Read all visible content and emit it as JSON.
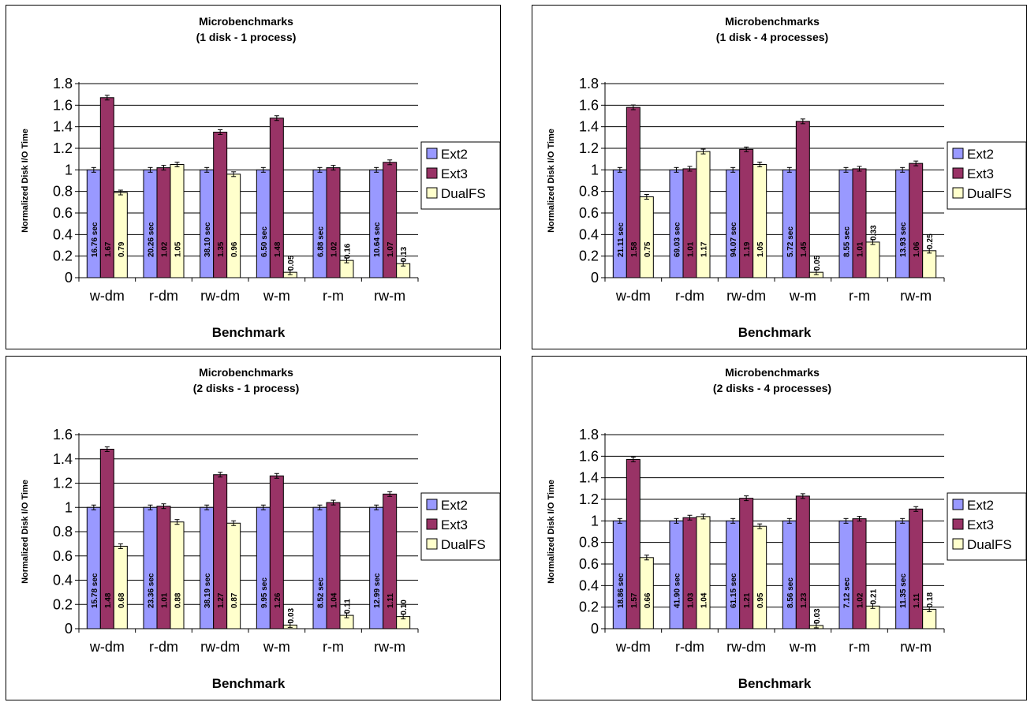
{
  "colors": {
    "Ext2": "#9999ff",
    "Ext3": "#993366",
    "DualFS": "#ffffcc"
  },
  "chart_data": [
    {
      "type": "bar",
      "title": "Microbenchmarks",
      "subtitle": "(1 disk - 1 process)",
      "xlabel": "Benchmark",
      "ylabel": "Normalized Disk I/O Time",
      "ylim": [
        0,
        1.8
      ],
      "yticks": [
        "0",
        "0.2",
        "0.4",
        "0.6",
        "0.8",
        "1",
        "1.2",
        "1.4",
        "1.6",
        "1.8"
      ],
      "grid": true,
      "legend_position": "right",
      "categories": [
        "w-dm",
        "r-dm",
        "rw-dm",
        "w-m",
        "r-m",
        "rw-m"
      ],
      "series": [
        {
          "name": "Ext2",
          "values": [
            1,
            1,
            1,
            1,
            1,
            1
          ],
          "labels": [
            "16.76 sec",
            "20.26 sec",
            "38.10 sec",
            "6.50 sec",
            "6.88 sec",
            "10.64 sec"
          ]
        },
        {
          "name": "Ext3",
          "values": [
            1.67,
            1.02,
            1.35,
            1.48,
            1.02,
            1.07
          ],
          "labels": [
            "1.67",
            "1.02",
            "1.35",
            "1.48",
            "1.02",
            "1.07"
          ]
        },
        {
          "name": "DualFS",
          "values": [
            0.79,
            1.05,
            0.96,
            0.05,
            0.16,
            0.13
          ],
          "labels": [
            "0.79",
            "1.05",
            "0.96",
            "0.05",
            "0.16",
            "0.13"
          ]
        }
      ]
    },
    {
      "type": "bar",
      "title": "Microbenchmarks",
      "subtitle": "(1 disk - 4 processes)",
      "xlabel": "Benchmark",
      "ylabel": "Normalized Disk I/O Time",
      "ylim": [
        0,
        1.8
      ],
      "yticks": [
        "0",
        "0.2",
        "0.4",
        "0.6",
        "0.8",
        "1",
        "1.2",
        "1.4",
        "1.6",
        "1.8"
      ],
      "grid": true,
      "legend_position": "right",
      "categories": [
        "w-dm",
        "r-dm",
        "rw-dm",
        "w-m",
        "r-m",
        "rw-m"
      ],
      "series": [
        {
          "name": "Ext2",
          "values": [
            1,
            1,
            1,
            1,
            1,
            1
          ],
          "labels": [
            "21.11 sec",
            "69.03 sec",
            "94.07 sec",
            "5.72 sec",
            "8.55 sec",
            "13.93 sec"
          ]
        },
        {
          "name": "Ext3",
          "values": [
            1.58,
            1.01,
            1.19,
            1.45,
            1.01,
            1.06
          ],
          "labels": [
            "1.58",
            "1.01",
            "1.19",
            "1.45",
            "1.01",
            "1.06"
          ]
        },
        {
          "name": "DualFS",
          "values": [
            0.75,
            1.17,
            1.05,
            0.05,
            0.33,
            0.25
          ],
          "labels": [
            "0.75",
            "1.17",
            "1.05",
            "0.05",
            "0.33",
            "0.25"
          ]
        }
      ]
    },
    {
      "type": "bar",
      "title": "Microbenchmarks",
      "subtitle": "(2 disks - 1 process)",
      "xlabel": "Benchmark",
      "ylabel": "Normalized Disk I/O Time",
      "ylim": [
        0,
        1.6
      ],
      "yticks": [
        "0",
        "0.2",
        "0.4",
        "0.6",
        "0.8",
        "1",
        "1.2",
        "1.4",
        "1.6"
      ],
      "grid": true,
      "legend_position": "right",
      "categories": [
        "w-dm",
        "r-dm",
        "rw-dm",
        "w-m",
        "r-m",
        "rw-m"
      ],
      "series": [
        {
          "name": "Ext2",
          "values": [
            1,
            1,
            1,
            1,
            1,
            1
          ],
          "labels": [
            "15.78 sec",
            "23.36 sec",
            "38.19 sec",
            "9.95 sec",
            "8.52 sec",
            "12.99 sec"
          ]
        },
        {
          "name": "Ext3",
          "values": [
            1.48,
            1.01,
            1.27,
            1.26,
            1.04,
            1.11
          ],
          "labels": [
            "1.48",
            "1.01",
            "1.27",
            "1.26",
            "1.04",
            "1.11"
          ]
        },
        {
          "name": "DualFS",
          "values": [
            0.68,
            0.88,
            0.87,
            0.03,
            0.11,
            0.1
          ],
          "labels": [
            "0.68",
            "0.88",
            "0.87",
            "0.03",
            "0.11",
            "0.10"
          ]
        }
      ]
    },
    {
      "type": "bar",
      "title": "Microbenchmarks",
      "subtitle": "(2 disks - 4 processes)",
      "xlabel": "Benchmark",
      "ylabel": "Normalized Disk I/O Time",
      "ylim": [
        0,
        1.8
      ],
      "yticks": [
        "0",
        "0.2",
        "0.4",
        "0.6",
        "0.8",
        "1",
        "1.2",
        "1.4",
        "1.6",
        "1.8"
      ],
      "grid": true,
      "legend_position": "right",
      "categories": [
        "w-dm",
        "r-dm",
        "rw-dm",
        "w-m",
        "r-m",
        "rw-m"
      ],
      "series": [
        {
          "name": "Ext2",
          "values": [
            1,
            1,
            1,
            1,
            1,
            1
          ],
          "labels": [
            "18.86 sec",
            "41.90 sec",
            "61.15 sec",
            "8.56 sec",
            "7.12 sec",
            "11.35 sec"
          ]
        },
        {
          "name": "Ext3",
          "values": [
            1.57,
            1.03,
            1.21,
            1.23,
            1.02,
            1.11
          ],
          "labels": [
            "1.57",
            "1.03",
            "1.21",
            "1.23",
            "1.02",
            "1.11"
          ]
        },
        {
          "name": "DualFS",
          "values": [
            0.66,
            1.04,
            0.95,
            0.03,
            0.21,
            0.18
          ],
          "labels": [
            "0.66",
            "1.04",
            "0.95",
            "0.03",
            "0.21",
            "0.18"
          ]
        }
      ]
    }
  ]
}
